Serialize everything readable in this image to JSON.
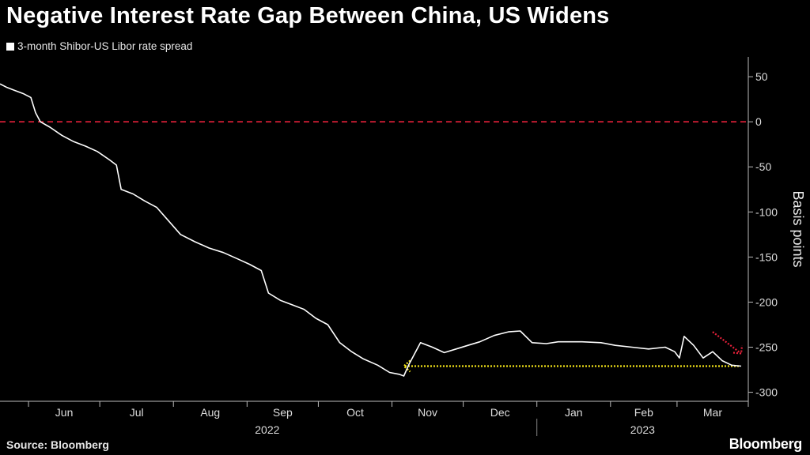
{
  "title": "Negative Interest Rate Gap Between China, US Widens",
  "legend": "3-month Shibor-US Libor rate spread",
  "source": "Source: Bloomberg",
  "brand": "Bloomberg",
  "colors": {
    "background": "#000000",
    "series": "#ffffff",
    "zero_line": "#e8213a",
    "yellow_arrow": "#f2e318",
    "red_arrow": "#e8213a"
  },
  "chart_data": {
    "type": "line",
    "title": "Negative Interest Rate Gap Between China, US Widens",
    "ylabel": "Basis points",
    "xlabel": "",
    "ylim": [
      -310,
      72
    ],
    "yticks": [
      50,
      0,
      -50,
      -100,
      -150,
      -200,
      -250,
      -300
    ],
    "ytick_labels": [
      "50",
      "0",
      "-50",
      "-100",
      "-150",
      "-200",
      "-250",
      "-300"
    ],
    "x_range": [
      "2022-05-20",
      "2023-03-31"
    ],
    "months": [
      {
        "label": "Jun",
        "date": "2022-06-01"
      },
      {
        "label": "Jul",
        "date": "2022-07-01"
      },
      {
        "label": "Aug",
        "date": "2022-08-01"
      },
      {
        "label": "Sep",
        "date": "2022-09-01"
      },
      {
        "label": "Oct",
        "date": "2022-10-01"
      },
      {
        "label": "Nov",
        "date": "2022-11-01"
      },
      {
        "label": "Dec",
        "date": "2022-12-01"
      },
      {
        "label": "Jan",
        "date": "2023-01-01"
      },
      {
        "label": "Feb",
        "date": "2023-02-01"
      },
      {
        "label": "Mar",
        "date": "2023-03-01"
      }
    ],
    "years": [
      {
        "label": "2022",
        "start": "2022-05-20",
        "end": "2022-12-31"
      },
      {
        "label": "2023",
        "start": "2023-01-01",
        "end": "2023-03-31"
      }
    ],
    "reference_line": {
      "value": 0,
      "style": "dashed"
    },
    "annotations": [
      {
        "type": "dotted-arrow",
        "color": "yellow",
        "from": "2023-03-27",
        "to": "2022-11-06",
        "value": -271
      },
      {
        "type": "dotted-arrow",
        "color": "red",
        "from": [
          "2023-03-16",
          -233
        ],
        "to": [
          "2023-03-28",
          -257
        ]
      }
    ],
    "series": [
      {
        "name": "3-month Shibor-US Libor rate spread",
        "points": [
          [
            "2022-05-20",
            42
          ],
          [
            "2022-05-23",
            38
          ],
          [
            "2022-05-26",
            35
          ],
          [
            "2022-05-30",
            31
          ],
          [
            "2022-06-02",
            27
          ],
          [
            "2022-06-04",
            10
          ],
          [
            "2022-06-06",
            0
          ],
          [
            "2022-06-10",
            -6
          ],
          [
            "2022-06-15",
            -15
          ],
          [
            "2022-06-20",
            -22
          ],
          [
            "2022-06-25",
            -27
          ],
          [
            "2022-06-30",
            -33
          ],
          [
            "2022-07-05",
            -42
          ],
          [
            "2022-07-08",
            -48
          ],
          [
            "2022-07-10",
            -75
          ],
          [
            "2022-07-15",
            -80
          ],
          [
            "2022-07-20",
            -88
          ],
          [
            "2022-07-25",
            -95
          ],
          [
            "2022-07-30",
            -110
          ],
          [
            "2022-08-04",
            -125
          ],
          [
            "2022-08-10",
            -133
          ],
          [
            "2022-08-16",
            -140
          ],
          [
            "2022-08-22",
            -145
          ],
          [
            "2022-08-28",
            -152
          ],
          [
            "2022-09-02",
            -158
          ],
          [
            "2022-09-07",
            -165
          ],
          [
            "2022-09-10",
            -190
          ],
          [
            "2022-09-15",
            -198
          ],
          [
            "2022-09-20",
            -203
          ],
          [
            "2022-09-25",
            -208
          ],
          [
            "2022-09-30",
            -218
          ],
          [
            "2022-10-05",
            -225
          ],
          [
            "2022-10-10",
            -245
          ],
          [
            "2022-10-15",
            -255
          ],
          [
            "2022-10-20",
            -263
          ],
          [
            "2022-10-26",
            -270
          ],
          [
            "2022-10-31",
            -278
          ],
          [
            "2022-11-04",
            -280
          ],
          [
            "2022-11-06",
            -282
          ],
          [
            "2022-11-08",
            -270
          ],
          [
            "2022-11-13",
            -245
          ],
          [
            "2022-11-18",
            -250
          ],
          [
            "2022-11-23",
            -256
          ],
          [
            "2022-11-28",
            -252
          ],
          [
            "2022-12-03",
            -248
          ],
          [
            "2022-12-08",
            -244
          ],
          [
            "2022-12-14",
            -237
          ],
          [
            "2022-12-20",
            -233
          ],
          [
            "2022-12-25",
            -232
          ],
          [
            "2022-12-30",
            -245
          ],
          [
            "2023-01-05",
            -246
          ],
          [
            "2023-01-10",
            -244
          ],
          [
            "2023-01-20",
            -244
          ],
          [
            "2023-01-28",
            -245
          ],
          [
            "2023-02-03",
            -248
          ],
          [
            "2023-02-10",
            -250
          ],
          [
            "2023-02-17",
            -252
          ],
          [
            "2023-02-24",
            -250
          ],
          [
            "2023-02-28",
            -255
          ],
          [
            "2023-03-02",
            -262
          ],
          [
            "2023-03-04",
            -238
          ],
          [
            "2023-03-08",
            -248
          ],
          [
            "2023-03-12",
            -262
          ],
          [
            "2023-03-16",
            -255
          ],
          [
            "2023-03-20",
            -265
          ],
          [
            "2023-03-24",
            -270
          ],
          [
            "2023-03-28",
            -271
          ]
        ]
      }
    ]
  }
}
